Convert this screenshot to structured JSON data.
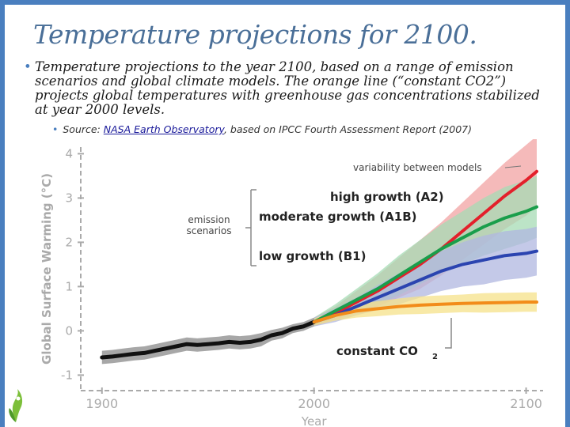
{
  "slide": {
    "title": "Temperature projections for 2100.",
    "bullet": "Temperature projections to the year 2100, based on a range of emission scenarios and global climate models. The orange line (“constant CO2”) projects global temperatures with greenhouse gas concentrations stabilized at year 2000 levels.",
    "source_prefix": "Source: ",
    "source_link": "NASA Earth Observatory",
    "source_suffix": ", based on IPCC Fourth Assessment Report (2007)"
  },
  "chart_data": {
    "type": "line",
    "xlabel": "Year",
    "ylabel": "Global Surface Warming (°C)",
    "xlim": [
      1890,
      2108
    ],
    "ylim": [
      -1.35,
      4.15
    ],
    "x_ticks": [
      1900,
      2000,
      2100
    ],
    "y_ticks": [
      -1,
      0,
      1,
      2,
      3,
      4
    ],
    "grid": false,
    "annotations": {
      "variability": "variability between models",
      "emission_line1": "emission",
      "emission_line2": "scenarios",
      "constant": "constant CO"
    },
    "historical": {
      "name": "",
      "color": "#111111",
      "band_color": "#8a8a8a",
      "x": [
        1900,
        1905,
        1910,
        1915,
        1920,
        1925,
        1930,
        1935,
        1940,
        1945,
        1950,
        1955,
        1960,
        1965,
        1970,
        1975,
        1980,
        1985,
        1990,
        1995,
        2000
      ],
      "y": [
        -0.6,
        -0.58,
        -0.55,
        -0.52,
        -0.5,
        -0.45,
        -0.4,
        -0.35,
        -0.3,
        -0.32,
        -0.3,
        -0.28,
        -0.25,
        -0.27,
        -0.25,
        -0.2,
        -0.1,
        -0.05,
        0.05,
        0.1,
        0.2
      ],
      "band": [
        0.15,
        0.15,
        0.15,
        0.15,
        0.15,
        0.15,
        0.15,
        0.15,
        0.15,
        0.15,
        0.15,
        0.15,
        0.15,
        0.15,
        0.15,
        0.15,
        0.12,
        0.12,
        0.1,
        0.1,
        0.1
      ]
    },
    "x": [
      2000,
      2010,
      2020,
      2030,
      2040,
      2050,
      2060,
      2070,
      2080,
      2090,
      2100,
      2105
    ],
    "series": [
      {
        "name": "high growth (A2)",
        "color": "#e3202b",
        "band_color": "#f2a3a3",
        "values": [
          0.2,
          0.4,
          0.65,
          0.9,
          1.2,
          1.5,
          1.85,
          2.25,
          2.65,
          3.05,
          3.4,
          3.6
        ],
        "band": [
          0.1,
          0.15,
          0.25,
          0.35,
          0.45,
          0.55,
          0.6,
          0.65,
          0.7,
          0.75,
          0.8,
          0.8
        ]
      },
      {
        "name": "moderate growth (A1B)",
        "color": "#1a9e4b",
        "band_color": "#a6dbb4",
        "values": [
          0.2,
          0.45,
          0.7,
          0.95,
          1.25,
          1.55,
          1.85,
          2.1,
          2.35,
          2.55,
          2.7,
          2.8
        ],
        "band": [
          0.1,
          0.15,
          0.25,
          0.35,
          0.45,
          0.5,
          0.55,
          0.6,
          0.65,
          0.7,
          0.7,
          0.7
        ]
      },
      {
        "name": "low growth (B1)",
        "color": "#2b44b0",
        "band_color": "#b0b7e0",
        "values": [
          0.2,
          0.35,
          0.55,
          0.75,
          0.95,
          1.15,
          1.35,
          1.5,
          1.6,
          1.7,
          1.75,
          1.8
        ],
        "band": [
          0.1,
          0.15,
          0.2,
          0.28,
          0.35,
          0.4,
          0.45,
          0.5,
          0.55,
          0.55,
          0.55,
          0.55
        ]
      },
      {
        "name": "constant CO2",
        "color": "#f28c1a",
        "band_color": "#f5e18a",
        "values": [
          0.2,
          0.35,
          0.45,
          0.5,
          0.55,
          0.58,
          0.6,
          0.62,
          0.63,
          0.64,
          0.65,
          0.65
        ],
        "band": [
          0.08,
          0.12,
          0.15,
          0.17,
          0.18,
          0.2,
          0.2,
          0.2,
          0.22,
          0.22,
          0.22,
          0.22
        ]
      }
    ]
  },
  "colors": {
    "accent": "#4a7fbf",
    "title": "#4a6f98",
    "axis": "#aaaaaa"
  }
}
